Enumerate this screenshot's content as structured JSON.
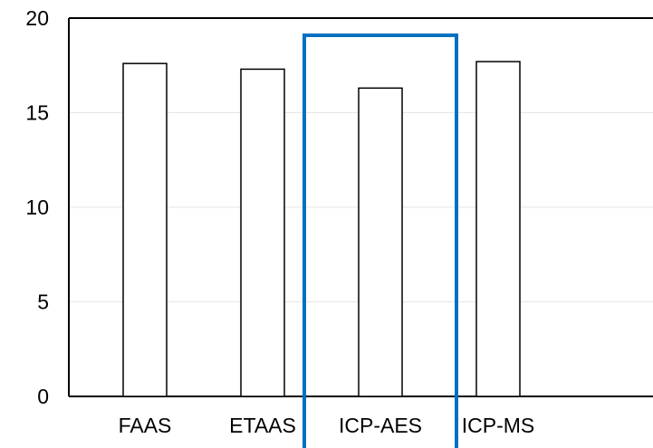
{
  "chart_data": {
    "type": "bar",
    "title": "",
    "xlabel": "",
    "ylabel": "",
    "categories": [
      "FAAS",
      "ETAAS",
      "ICP-AES",
      "ICP-MS"
    ],
    "values": [
      17.6,
      17.3,
      16.3,
      17.7
    ],
    "ylim": [
      0,
      20
    ],
    "yticks": [
      0,
      5,
      10,
      15,
      20
    ],
    "grid": true,
    "legend": "none",
    "highlighted_category": "ICP-AES",
    "colors": {
      "bar_fill": "#ffffff",
      "bar_stroke": "#000000",
      "axis": "#000000",
      "grid": "#e6e6e6",
      "highlight": "#0070c0"
    }
  }
}
